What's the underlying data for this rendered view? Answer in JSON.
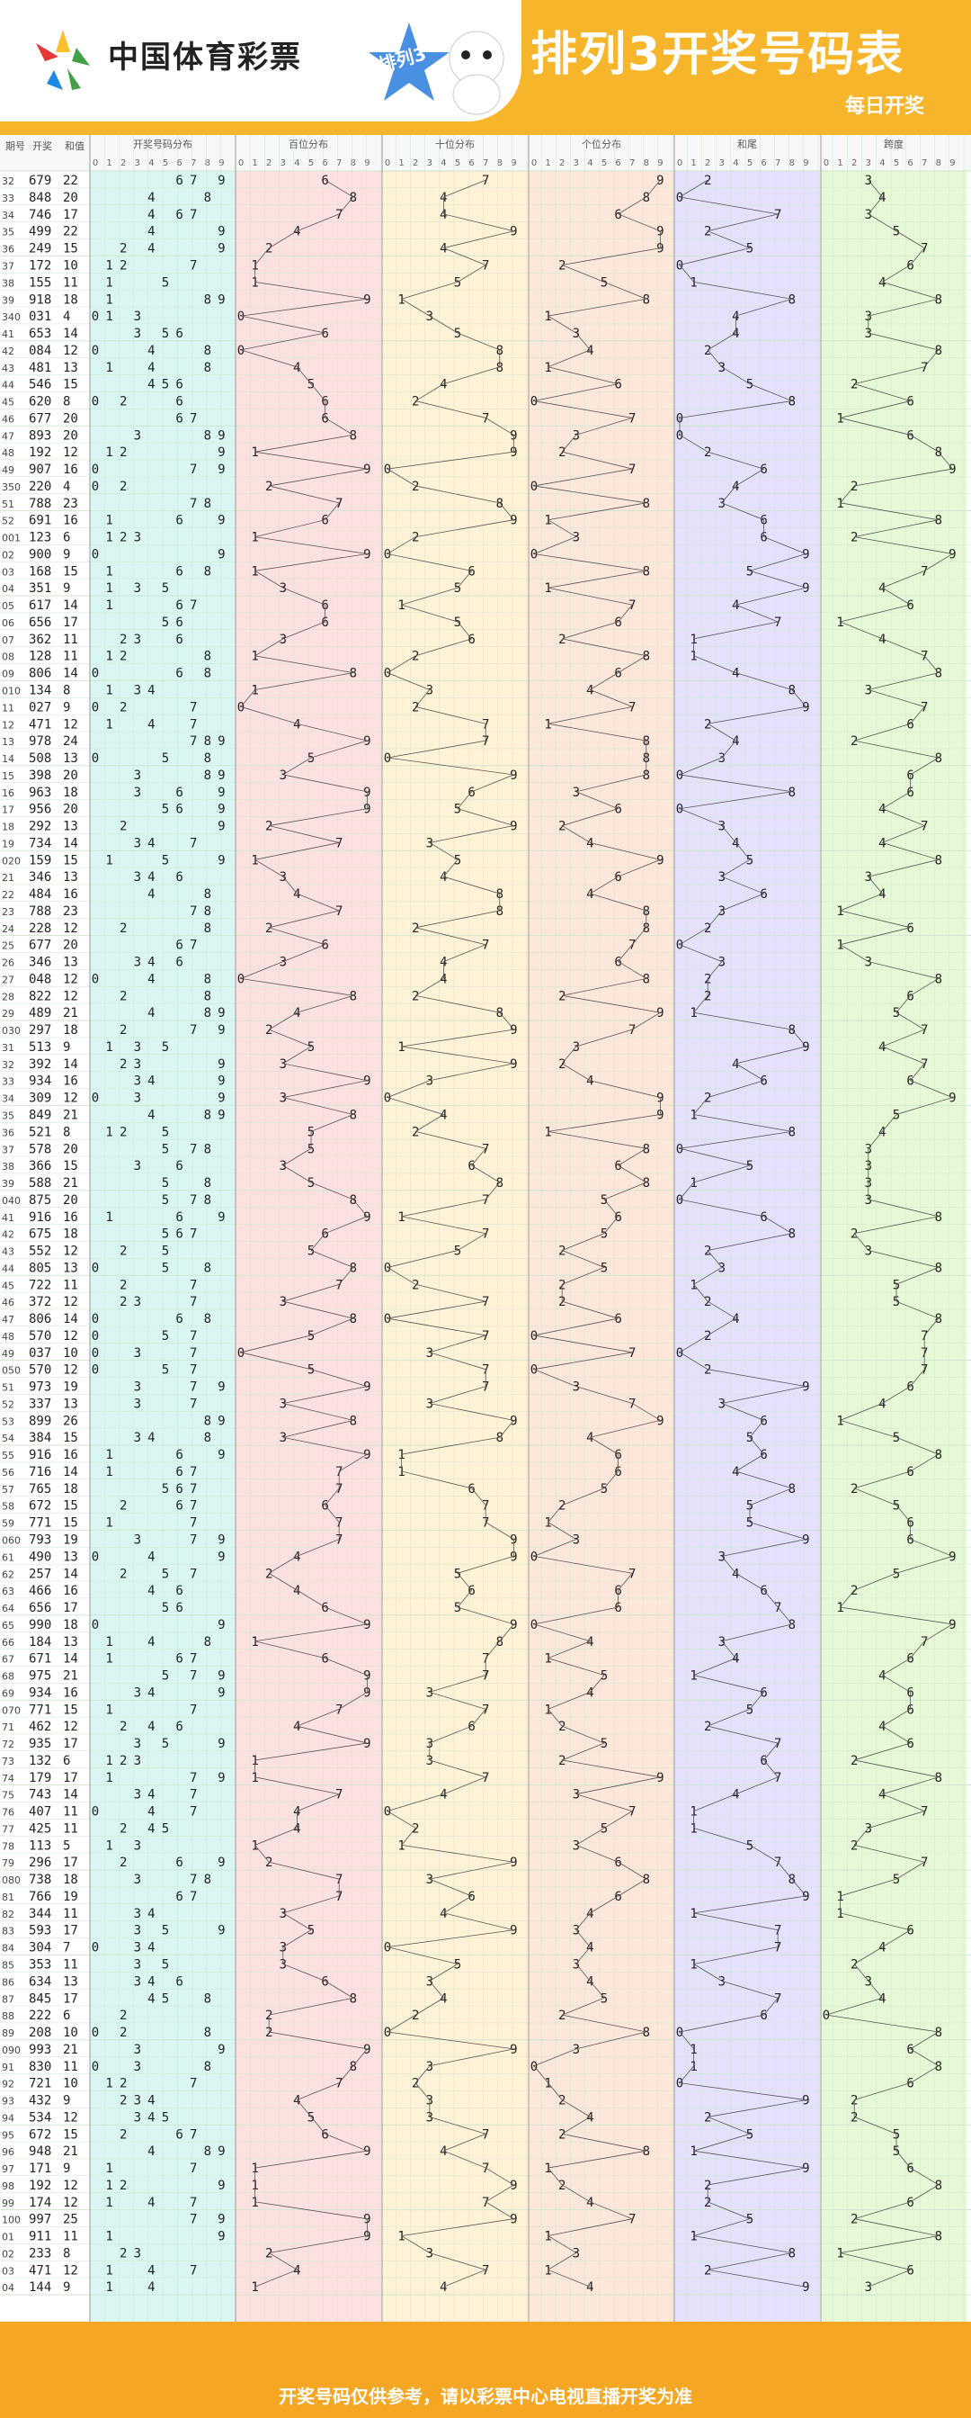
{
  "header": {
    "logo_text": "中国体育彩票",
    "badge_text": "排列3",
    "title": "排列3开奖号码表",
    "subtitle": "每日开奖"
  },
  "footer": {
    "text": "开奖号码仅供参考，请以彩票中心电视直播开奖为准"
  },
  "table": {
    "col_headers": [
      "期号",
      "开奖",
      "和值"
    ],
    "sections": [
      "开奖号码分布",
      "百位分布",
      "十位分布",
      "个位分布",
      "和尾",
      "跨度"
    ],
    "digits": [
      "0",
      "1",
      "2",
      "3",
      "4",
      "5",
      "6",
      "7",
      "8",
      "9"
    ],
    "colors": {
      "dist": "#d9f6f3",
      "hundreds": "#fde0e0",
      "tens": "#fff2d6",
      "units": "#fde7da",
      "sumtail": "#e5e0fb",
      "span": "#e6f8d6",
      "highlight": "#e02020",
      "special": "#b040d0"
    },
    "rows": [
      [
        "32",
        "679",
        "22"
      ],
      [
        "33",
        "848",
        "20"
      ],
      [
        "34",
        "746",
        "17"
      ],
      [
        "35",
        "499",
        "22"
      ],
      [
        "36",
        "249",
        "15"
      ],
      [
        "37",
        "172",
        "10"
      ],
      [
        "38",
        "155",
        "11"
      ],
      [
        "39",
        "918",
        "18"
      ],
      [
        "340",
        "031",
        "4"
      ],
      [
        "41",
        "653",
        "14"
      ],
      [
        "42",
        "084",
        "12"
      ],
      [
        "43",
        "481",
        "13"
      ],
      [
        "44",
        "546",
        "15"
      ],
      [
        "45",
        "620",
        "8"
      ],
      [
        "46",
        "677",
        "20"
      ],
      [
        "47",
        "893",
        "20"
      ],
      [
        "48",
        "192",
        "12"
      ],
      [
        "49",
        "907",
        "16"
      ],
      [
        "350",
        "220",
        "4"
      ],
      [
        "51",
        "788",
        "23"
      ],
      [
        "52",
        "691",
        "16"
      ],
      [
        "001",
        "123",
        "6"
      ],
      [
        "02",
        "900",
        "9"
      ],
      [
        "03",
        "168",
        "15"
      ],
      [
        "04",
        "351",
        "9"
      ],
      [
        "05",
        "617",
        "14"
      ],
      [
        "06",
        "656",
        "17"
      ],
      [
        "07",
        "362",
        "11"
      ],
      [
        "08",
        "128",
        "11"
      ],
      [
        "09",
        "806",
        "14"
      ],
      [
        "010",
        "134",
        "8"
      ],
      [
        "11",
        "027",
        "9"
      ],
      [
        "12",
        "471",
        "12"
      ],
      [
        "13",
        "978",
        "24"
      ],
      [
        "14",
        "508",
        "13"
      ],
      [
        "15",
        "398",
        "20"
      ],
      [
        "16",
        "963",
        "18"
      ],
      [
        "17",
        "956",
        "20"
      ],
      [
        "18",
        "292",
        "13"
      ],
      [
        "19",
        "734",
        "14"
      ],
      [
        "020",
        "159",
        "15"
      ],
      [
        "21",
        "346",
        "13"
      ],
      [
        "22",
        "484",
        "16"
      ],
      [
        "23",
        "788",
        "23"
      ],
      [
        "24",
        "228",
        "12"
      ],
      [
        "25",
        "677",
        "20"
      ],
      [
        "26",
        "346",
        "13"
      ],
      [
        "27",
        "048",
        "12"
      ],
      [
        "28",
        "822",
        "12"
      ],
      [
        "29",
        "489",
        "21"
      ],
      [
        "030",
        "297",
        "18"
      ],
      [
        "31",
        "513",
        "9"
      ],
      [
        "32",
        "392",
        "14"
      ],
      [
        "33",
        "934",
        "16"
      ],
      [
        "34",
        "309",
        "12"
      ],
      [
        "35",
        "849",
        "21"
      ],
      [
        "36",
        "521",
        "8"
      ],
      [
        "37",
        "578",
        "20"
      ],
      [
        "38",
        "366",
        "15"
      ],
      [
        "39",
        "588",
        "21"
      ],
      [
        "040",
        "875",
        "20"
      ],
      [
        "41",
        "916",
        "16"
      ],
      [
        "42",
        "675",
        "18"
      ],
      [
        "43",
        "552",
        "12"
      ],
      [
        "44",
        "805",
        "13"
      ],
      [
        "45",
        "722",
        "11"
      ],
      [
        "46",
        "372",
        "12"
      ],
      [
        "47",
        "806",
        "14"
      ],
      [
        "48",
        "570",
        "12"
      ],
      [
        "49",
        "037",
        "10"
      ],
      [
        "050",
        "570",
        "12"
      ],
      [
        "51",
        "973",
        "19"
      ],
      [
        "52",
        "337",
        "13"
      ],
      [
        "53",
        "899",
        "26"
      ],
      [
        "54",
        "384",
        "15"
      ],
      [
        "55",
        "916",
        "16"
      ],
      [
        "56",
        "716",
        "14"
      ],
      [
        "57",
        "765",
        "18"
      ],
      [
        "58",
        "672",
        "15"
      ],
      [
        "59",
        "771",
        "15"
      ],
      [
        "060",
        "793",
        "19"
      ],
      [
        "61",
        "490",
        "13"
      ],
      [
        "62",
        "257",
        "14"
      ],
      [
        "63",
        "466",
        "16"
      ],
      [
        "64",
        "656",
        "17"
      ],
      [
        "65",
        "990",
        "18"
      ],
      [
        "66",
        "184",
        "13"
      ],
      [
        "67",
        "671",
        "14"
      ],
      [
        "68",
        "975",
        "21"
      ],
      [
        "69",
        "934",
        "16"
      ],
      [
        "070",
        "771",
        "15"
      ],
      [
        "71",
        "462",
        "12"
      ],
      [
        "72",
        "935",
        "17"
      ],
      [
        "73",
        "132",
        "6"
      ],
      [
        "74",
        "179",
        "17"
      ],
      [
        "75",
        "743",
        "14"
      ],
      [
        "76",
        "407",
        "11"
      ],
      [
        "77",
        "425",
        "11"
      ],
      [
        "78",
        "113",
        "5"
      ],
      [
        "79",
        "296",
        "17"
      ],
      [
        "080",
        "738",
        "18"
      ],
      [
        "81",
        "766",
        "19"
      ],
      [
        "82",
        "344",
        "11"
      ],
      [
        "83",
        "593",
        "17"
      ],
      [
        "84",
        "304",
        "7"
      ],
      [
        "85",
        "353",
        "11"
      ],
      [
        "86",
        "634",
        "13"
      ],
      [
        "87",
        "845",
        "17"
      ],
      [
        "88",
        "222",
        "6"
      ],
      [
        "89",
        "208",
        "10"
      ],
      [
        "090",
        "993",
        "21"
      ],
      [
        "91",
        "830",
        "11"
      ],
      [
        "92",
        "721",
        "10"
      ],
      [
        "93",
        "432",
        "9"
      ],
      [
        "94",
        "534",
        "12"
      ],
      [
        "95",
        "672",
        "15"
      ],
      [
        "96",
        "948",
        "21"
      ],
      [
        "97",
        "171",
        "9"
      ],
      [
        "98",
        "192",
        "12"
      ],
      [
        "99",
        "174",
        "12"
      ],
      [
        "100",
        "997",
        "25"
      ],
      [
        "01",
        "911",
        "11"
      ],
      [
        "02",
        "233",
        "8"
      ],
      [
        "03",
        "471",
        "12"
      ],
      [
        "04",
        "144",
        "9"
      ]
    ]
  }
}
